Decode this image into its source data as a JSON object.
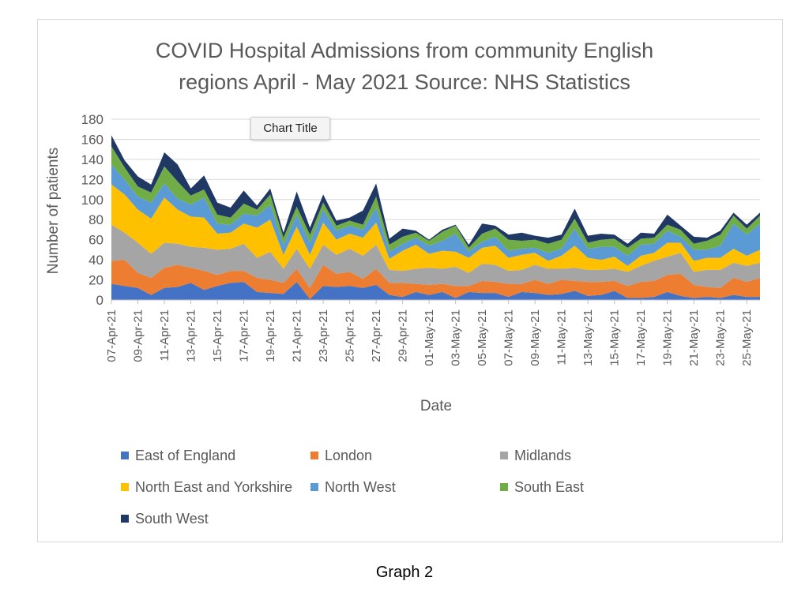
{
  "chart_data": {
    "type": "area",
    "stacked": true,
    "title_line1": "COVID Hospital Admissions from community English",
    "title_line2": "regions April - May 2021 Source: NHS Statistics",
    "xlabel": "Date",
    "ylabel": "Number of patients",
    "ylim": [
      0,
      180
    ],
    "yticks": [
      0,
      20,
      40,
      60,
      80,
      100,
      120,
      140,
      160,
      180
    ],
    "grid": true,
    "legend_position": "bottom",
    "x_start_label": "07-Apr-21",
    "x_tick_labels": [
      "07-Apr-21",
      "09-Apr-21",
      "11-Apr-21",
      "13-Apr-21",
      "15-Apr-21",
      "17-Apr-21",
      "19-Apr-21",
      "21-Apr-21",
      "23-Apr-21",
      "25-Apr-21",
      "27-Apr-21",
      "29-Apr-21",
      "01-May-21",
      "03-May-21",
      "05-May-21",
      "07-May-21",
      "09-May-21",
      "11-May-21",
      "13-May-21",
      "15-May-21",
      "17-May-21",
      "19-May-21",
      "21-May-21",
      "23-May-21",
      "25-May-21"
    ],
    "x": [
      "07-Apr-21",
      "08-Apr-21",
      "09-Apr-21",
      "10-Apr-21",
      "11-Apr-21",
      "12-Apr-21",
      "13-Apr-21",
      "14-Apr-21",
      "15-Apr-21",
      "16-Apr-21",
      "17-Apr-21",
      "18-Apr-21",
      "19-Apr-21",
      "20-Apr-21",
      "21-Apr-21",
      "22-Apr-21",
      "23-Apr-21",
      "24-Apr-21",
      "25-Apr-21",
      "26-Apr-21",
      "27-Apr-21",
      "28-Apr-21",
      "29-Apr-21",
      "30-Apr-21",
      "01-May-21",
      "02-May-21",
      "03-May-21",
      "04-May-21",
      "05-May-21",
      "06-May-21",
      "07-May-21",
      "08-May-21",
      "09-May-21",
      "10-May-21",
      "11-May-21",
      "12-May-21",
      "13-May-21",
      "14-May-21",
      "15-May-21",
      "16-May-21",
      "17-May-21",
      "18-May-21",
      "19-May-21",
      "20-May-21",
      "21-May-21",
      "22-May-21",
      "23-May-21",
      "24-May-21",
      "25-May-21",
      "26-May-21"
    ],
    "series": [
      {
        "name": "East of England",
        "color": "#4472c4",
        "values": [
          16,
          14,
          12,
          5,
          12,
          13,
          17,
          10,
          14,
          17,
          18,
          8,
          7,
          6,
          18,
          1,
          14,
          13,
          14,
          12,
          15,
          5,
          3,
          8,
          5,
          8,
          2,
          8,
          7,
          7,
          3,
          8,
          7,
          5,
          6,
          9,
          4,
          5,
          9,
          2,
          2,
          3,
          8,
          4,
          2,
          3,
          2,
          5,
          3,
          3
        ]
      },
      {
        "name": "London",
        "color": "#ed7d31",
        "values": [
          23,
          26,
          15,
          17,
          20,
          22,
          15,
          19,
          11,
          12,
          11,
          14,
          13,
          11,
          13,
          11,
          21,
          13,
          14,
          9,
          16,
          12,
          14,
          8,
          10,
          8,
          12,
          6,
          12,
          11,
          13,
          8,
          13,
          11,
          14,
          10,
          14,
          13,
          10,
          12,
          16,
          16,
          17,
          22,
          13,
          10,
          10,
          17,
          15,
          19
        ]
      },
      {
        "name": "Midlands",
        "color": "#a5a5a5",
        "values": [
          36,
          27,
          30,
          24,
          25,
          21,
          21,
          23,
          25,
          22,
          27,
          20,
          28,
          14,
          20,
          19,
          20,
          19,
          23,
          23,
          24,
          13,
          12,
          15,
          17,
          15,
          19,
          13,
          17,
          17,
          13,
          14,
          15,
          15,
          11,
          13,
          12,
          12,
          12,
          14,
          16,
          20,
          18,
          21,
          13,
          17,
          18,
          15,
          16,
          15
        ]
      },
      {
        "name": "North East and Yorkshire",
        "color": "#ffc000",
        "values": [
          40,
          38,
          33,
          35,
          45,
          34,
          30,
          30,
          16,
          16,
          20,
          30,
          32,
          14,
          22,
          14,
          22,
          15,
          15,
          18,
          22,
          11,
          20,
          24,
          14,
          18,
          15,
          15,
          16,
          19,
          13,
          15,
          12,
          8,
          13,
          22,
          12,
          10,
          12,
          6,
          10,
          8,
          14,
          10,
          11,
          12,
          12,
          14,
          10,
          13
        ]
      },
      {
        "name": "North West",
        "color": "#5b9bd5",
        "values": [
          20,
          15,
          13,
          16,
          14,
          11,
          12,
          20,
          10,
          8,
          10,
          12,
          15,
          10,
          12,
          12,
          13,
          9,
          8,
          8,
          15,
          7,
          7,
          7,
          8,
          10,
          18,
          6,
          6,
          9,
          7,
          6,
          5,
          8,
          7,
          17,
          9,
          13,
          10,
          10,
          11,
          9,
          12,
          6,
          11,
          8,
          12,
          25,
          21,
          26
        ]
      },
      {
        "name": "South East",
        "color": "#70ad47",
        "values": [
          18,
          12,
          10,
          10,
          17,
          17,
          9,
          8,
          9,
          7,
          10,
          6,
          10,
          7,
          8,
          8,
          7,
          5,
          5,
          5,
          11,
          7,
          7,
          5,
          5,
          9,
          8,
          4,
          8,
          8,
          11,
          8,
          8,
          9,
          9,
          10,
          6,
          7,
          8,
          8,
          6,
          6,
          6,
          7,
          6,
          9,
          11,
          8,
          6,
          8
        ]
      },
      {
        "name": "South West",
        "color": "#203864",
        "values": [
          11,
          7,
          10,
          8,
          14,
          17,
          7,
          14,
          12,
          10,
          13,
          4,
          6,
          5,
          15,
          7,
          8,
          5,
          3,
          14,
          13,
          6,
          8,
          2,
          1,
          2,
          1,
          3,
          10,
          3,
          5,
          8,
          4,
          6,
          5,
          10,
          7,
          6,
          4,
          4,
          6,
          4,
          10,
          4,
          7,
          3,
          4,
          3,
          4,
          3
        ]
      }
    ],
    "tooltip_text": "Chart Title",
    "caption": "Graph 2"
  }
}
